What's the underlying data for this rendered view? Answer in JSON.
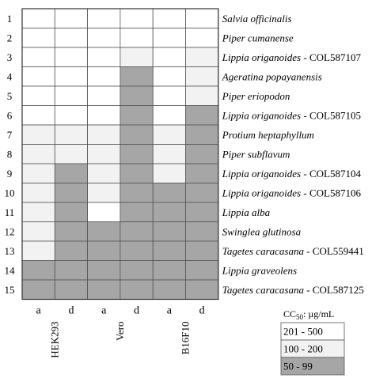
{
  "chart_data": {
    "type": "heatmap",
    "rows": [
      {
        "number": "1",
        "species": "Salvia officinalis",
        "collection": ""
      },
      {
        "number": "2",
        "species": "Piper cumanense",
        "collection": ""
      },
      {
        "number": "3",
        "species": "Lippia origanoides",
        "collection": " - COL587107"
      },
      {
        "number": "4",
        "species": "Ageratina popayanensis",
        "collection": ""
      },
      {
        "number": "5",
        "species": "Piper eriopodon",
        "collection": ""
      },
      {
        "number": "6",
        "species": "Lippia origanoides",
        "collection": " - COL587105"
      },
      {
        "number": "7",
        "species": "Protium heptaphyllum",
        "collection": ""
      },
      {
        "number": "8",
        "species": "Piper subflavum",
        "collection": ""
      },
      {
        "number": "9",
        "species": "Lippia origanoides",
        "collection": " - COL587104"
      },
      {
        "number": "10",
        "species": "Lippia origanoides",
        "collection": " - COL587106"
      },
      {
        "number": "11",
        "species": "Lippia alba",
        "collection": ""
      },
      {
        "number": "12",
        "species": "Swinglea glutinosa",
        "collection": ""
      },
      {
        "number": "13",
        "species": "Tagetes caracasana",
        "collection": " - COL559441"
      },
      {
        "number": "14",
        "species": "Lippia graveolens",
        "collection": ""
      },
      {
        "number": "15",
        "species": "Tagetes caracasana",
        "collection": " - COL587125"
      }
    ],
    "column_labels": [
      "a",
      "d",
      "a",
      "d",
      "a",
      "d"
    ],
    "cell_lines": [
      "HEK293",
      "Vero",
      "B16F10"
    ],
    "values": [
      [
        0,
        0,
        0,
        0,
        0,
        0
      ],
      [
        0,
        0,
        0,
        0,
        0,
        0
      ],
      [
        0,
        0,
        0,
        1,
        0,
        1
      ],
      [
        0,
        0,
        0,
        2,
        0,
        1
      ],
      [
        0,
        0,
        0,
        2,
        0,
        1
      ],
      [
        0,
        0,
        0,
        2,
        0,
        2
      ],
      [
        1,
        1,
        1,
        2,
        1,
        2
      ],
      [
        1,
        1,
        1,
        2,
        1,
        2
      ],
      [
        1,
        2,
        1,
        2,
        1,
        2
      ],
      [
        1,
        2,
        1,
        2,
        2,
        2
      ],
      [
        1,
        2,
        0,
        2,
        2,
        2
      ],
      [
        1,
        2,
        2,
        2,
        2,
        2
      ],
      [
        1,
        2,
        2,
        2,
        2,
        2
      ],
      [
        2,
        2,
        2,
        2,
        2,
        2
      ],
      [
        2,
        2,
        2,
        2,
        2,
        2
      ]
    ],
    "legend": {
      "title": "CC",
      "title_sub": "50",
      "title_suffix": ": µg/mL",
      "placement": "bottom-right",
      "items": [
        {
          "label": "201 - 500",
          "color": "#ffffff"
        },
        {
          "label": "100 - 200",
          "color": "#f2f2f2"
        },
        {
          "label": "50 - 99",
          "color": "#a6a6a6"
        }
      ]
    }
  }
}
